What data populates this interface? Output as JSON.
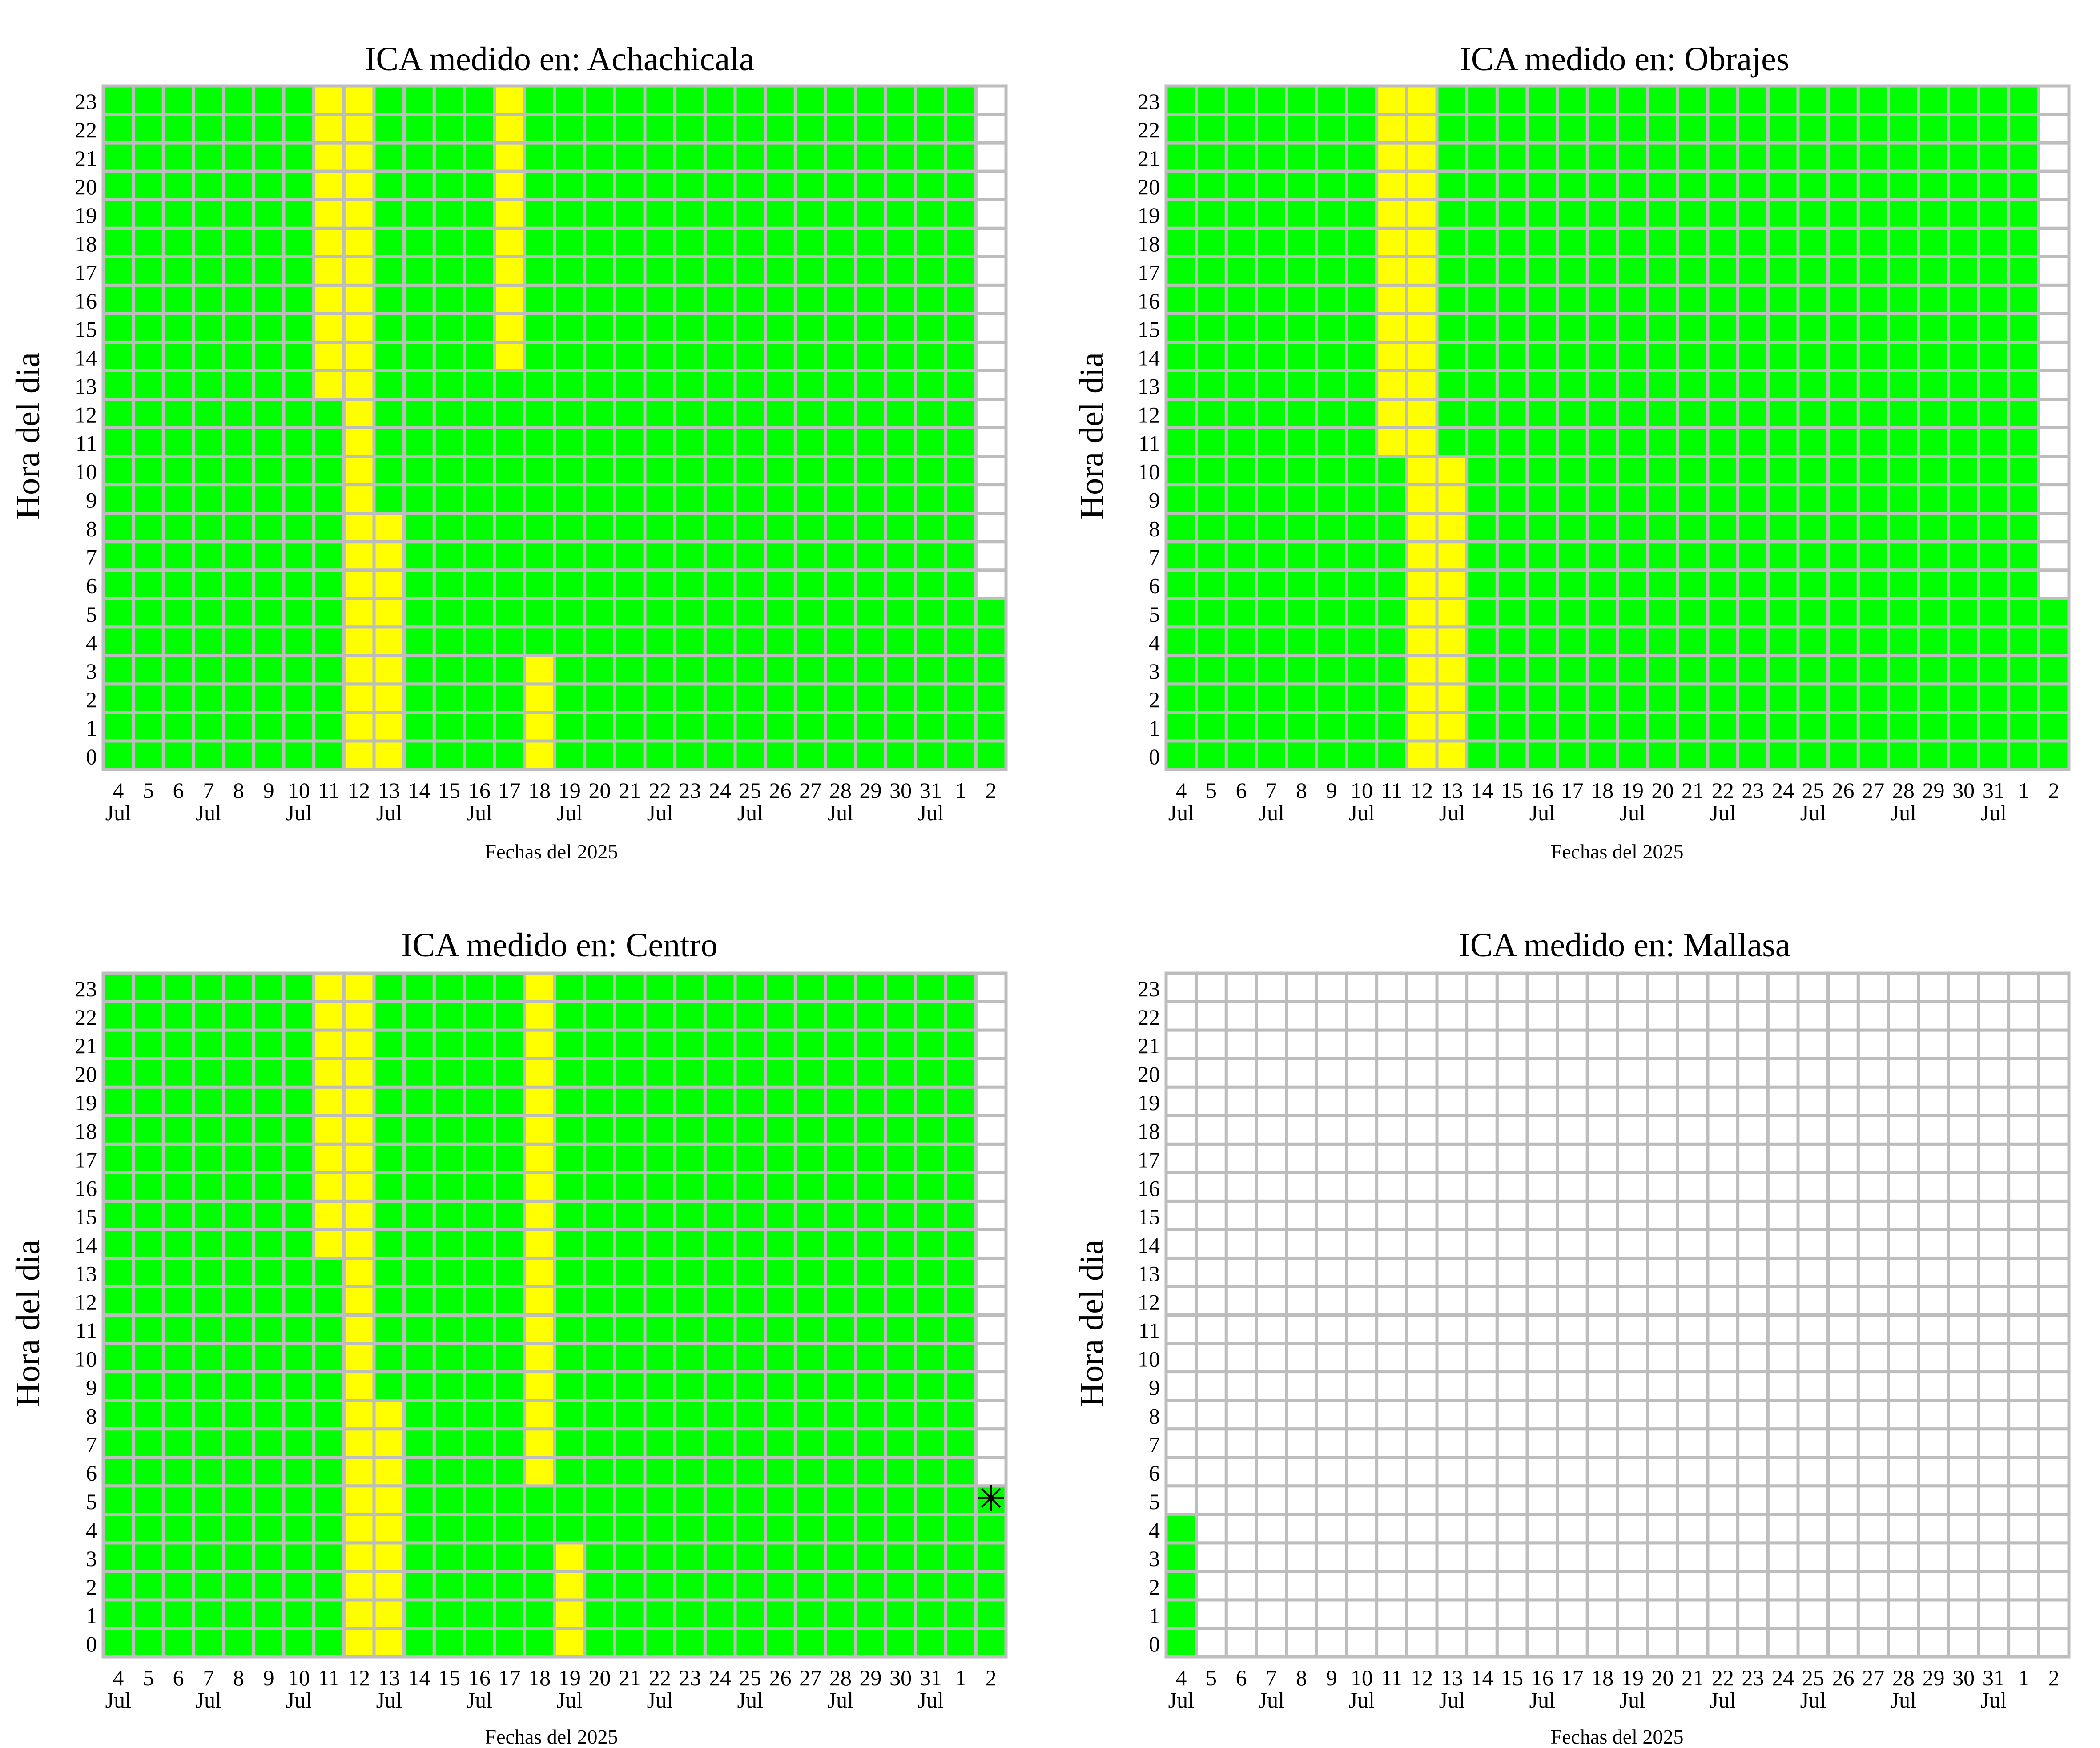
{
  "colors": {
    "good": "#00ff00",
    "moderate": "#ffff00",
    "empty": "#ffffff",
    "grid": "#bdbdbd"
  },
  "chart_data": [
    {
      "type": "heatmap",
      "title": "ICA medido en: Achachicala",
      "xlabel": "Fechas del 2025",
      "ylabel": "Hora del dia",
      "x_tick_labels": [
        "4",
        "5",
        "6",
        "7",
        "8",
        "9",
        "10",
        "11",
        "12",
        "13",
        "14",
        "15",
        "16",
        "17",
        "18",
        "19",
        "20",
        "21",
        "22",
        "23",
        "24",
        "25",
        "26",
        "27",
        "28",
        "29",
        "30",
        "31",
        "1",
        "2"
      ],
      "x_month_labels": [
        "Jul",
        "",
        "",
        "Jul",
        "",
        "",
        "Jul",
        "",
        "",
        "Jul",
        "",
        "",
        "Jul",
        "",
        "",
        "Jul",
        "",
        "",
        "Jul",
        "",
        "",
        "Jul",
        "",
        "",
        "Jul",
        "",
        "",
        "Jul",
        "",
        ""
      ],
      "y_tick_labels": [
        "0",
        "1",
        "2",
        "3",
        "4",
        "5",
        "6",
        "7",
        "8",
        "9",
        "10",
        "11",
        "12",
        "13",
        "14",
        "15",
        "16",
        "17",
        "18",
        "19",
        "20",
        "21",
        "22",
        "23"
      ],
      "default_category": "good",
      "overrides": [
        {
          "days": [
            "11"
          ],
          "hours": [
            13,
            23
          ],
          "category": "moderate"
        },
        {
          "days": [
            "12"
          ],
          "hours": [
            0,
            23
          ],
          "category": "moderate"
        },
        {
          "days": [
            "13"
          ],
          "hours": [
            0,
            8
          ],
          "category": "moderate"
        },
        {
          "days": [
            "17"
          ],
          "hours": [
            14,
            23
          ],
          "category": "moderate"
        },
        {
          "days": [
            "18"
          ],
          "hours": [
            0,
            3
          ],
          "category": "moderate"
        },
        {
          "days": [
            "2"
          ],
          "hours": [
            6,
            23
          ],
          "category": "empty"
        }
      ],
      "markers": []
    },
    {
      "type": "heatmap",
      "title": "ICA medido en: Obrajes",
      "xlabel": "Fechas del 2025",
      "ylabel": "Hora del dia",
      "x_tick_labels": [
        "4",
        "5",
        "6",
        "7",
        "8",
        "9",
        "10",
        "11",
        "12",
        "13",
        "14",
        "15",
        "16",
        "17",
        "18",
        "19",
        "20",
        "21",
        "22",
        "23",
        "24",
        "25",
        "26",
        "27",
        "28",
        "29",
        "30",
        "31",
        "1",
        "2"
      ],
      "x_month_labels": [
        "Jul",
        "",
        "",
        "Jul",
        "",
        "",
        "Jul",
        "",
        "",
        "Jul",
        "",
        "",
        "Jul",
        "",
        "",
        "Jul",
        "",
        "",
        "Jul",
        "",
        "",
        "Jul",
        "",
        "",
        "Jul",
        "",
        "",
        "Jul",
        "",
        ""
      ],
      "y_tick_labels": [
        "0",
        "1",
        "2",
        "3",
        "4",
        "5",
        "6",
        "7",
        "8",
        "9",
        "10",
        "11",
        "12",
        "13",
        "14",
        "15",
        "16",
        "17",
        "18",
        "19",
        "20",
        "21",
        "22",
        "23"
      ],
      "default_category": "good",
      "overrides": [
        {
          "days": [
            "11"
          ],
          "hours": [
            11,
            23
          ],
          "category": "moderate"
        },
        {
          "days": [
            "12"
          ],
          "hours": [
            0,
            23
          ],
          "category": "moderate"
        },
        {
          "days": [
            "13"
          ],
          "hours": [
            0,
            10
          ],
          "category": "moderate"
        },
        {
          "days": [
            "2"
          ],
          "hours": [
            6,
            23
          ],
          "category": "empty"
        }
      ],
      "markers": []
    },
    {
      "type": "heatmap",
      "title": "ICA medido en: Centro",
      "xlabel": "Fechas del 2025",
      "ylabel": "Hora del dia",
      "x_tick_labels": [
        "4",
        "5",
        "6",
        "7",
        "8",
        "9",
        "10",
        "11",
        "12",
        "13",
        "14",
        "15",
        "16",
        "17",
        "18",
        "19",
        "20",
        "21",
        "22",
        "23",
        "24",
        "25",
        "26",
        "27",
        "28",
        "29",
        "30",
        "31",
        "1",
        "2"
      ],
      "x_month_labels": [
        "Jul",
        "",
        "",
        "Jul",
        "",
        "",
        "Jul",
        "",
        "",
        "Jul",
        "",
        "",
        "Jul",
        "",
        "",
        "Jul",
        "",
        "",
        "Jul",
        "",
        "",
        "Jul",
        "",
        "",
        "Jul",
        "",
        "",
        "Jul",
        "",
        ""
      ],
      "y_tick_labels": [
        "0",
        "1",
        "2",
        "3",
        "4",
        "5",
        "6",
        "7",
        "8",
        "9",
        "10",
        "11",
        "12",
        "13",
        "14",
        "15",
        "16",
        "17",
        "18",
        "19",
        "20",
        "21",
        "22",
        "23"
      ],
      "default_category": "good",
      "overrides": [
        {
          "days": [
            "11"
          ],
          "hours": [
            14,
            23
          ],
          "category": "moderate"
        },
        {
          "days": [
            "12"
          ],
          "hours": [
            0,
            23
          ],
          "category": "moderate"
        },
        {
          "days": [
            "13"
          ],
          "hours": [
            0,
            8
          ],
          "category": "moderate"
        },
        {
          "days": [
            "18"
          ],
          "hours": [
            6,
            23
          ],
          "category": "moderate"
        },
        {
          "days": [
            "19"
          ],
          "hours": [
            0,
            3
          ],
          "category": "moderate"
        },
        {
          "days": [
            "2"
          ],
          "hours": [
            6,
            23
          ],
          "category": "empty"
        }
      ],
      "markers": [
        {
          "day": "2",
          "hour": 5,
          "symbol": "asterisk"
        }
      ]
    },
    {
      "type": "heatmap",
      "title": "ICA medido en: Mallasa",
      "xlabel": "Fechas del 2025",
      "ylabel": "Hora del dia",
      "x_tick_labels": [
        "4",
        "5",
        "6",
        "7",
        "8",
        "9",
        "10",
        "11",
        "12",
        "13",
        "14",
        "15",
        "16",
        "17",
        "18",
        "19",
        "20",
        "21",
        "22",
        "23",
        "24",
        "25",
        "26",
        "27",
        "28",
        "29",
        "30",
        "31",
        "1",
        "2"
      ],
      "x_month_labels": [
        "Jul",
        "",
        "",
        "Jul",
        "",
        "",
        "Jul",
        "",
        "",
        "Jul",
        "",
        "",
        "Jul",
        "",
        "",
        "Jul",
        "",
        "",
        "Jul",
        "",
        "",
        "Jul",
        "",
        "",
        "Jul",
        "",
        "",
        "Jul",
        "",
        ""
      ],
      "y_tick_labels": [
        "0",
        "1",
        "2",
        "3",
        "4",
        "5",
        "6",
        "7",
        "8",
        "9",
        "10",
        "11",
        "12",
        "13",
        "14",
        "15",
        "16",
        "17",
        "18",
        "19",
        "20",
        "21",
        "22",
        "23"
      ],
      "default_category": "empty",
      "overrides": [
        {
          "days": [
            "4"
          ],
          "hours": [
            0,
            4
          ],
          "category": "good"
        }
      ],
      "markers": []
    }
  ]
}
